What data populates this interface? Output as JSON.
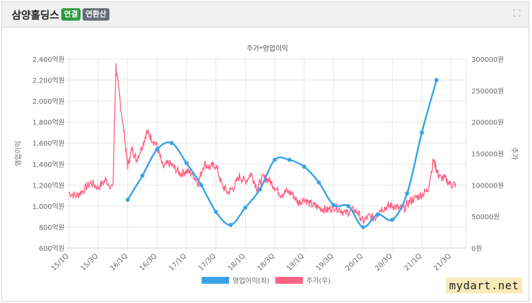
{
  "header": {
    "company_name": "삼양홀딩스",
    "badge_consolidated": "연결",
    "badge_annualized": "연환산"
  },
  "watermark": "mydart.net",
  "colors": {
    "operating_profit": "#3aa3e8",
    "stock_price": "#ff6384",
    "grid": "#e6e6e6",
    "axis_text": "#666666"
  },
  "chart_data": {
    "type": "line",
    "title": "주가*영업이익",
    "ylabel_left": "영업이익",
    "ylabel_right": "주가",
    "legend_position": "bottom",
    "grid": true,
    "x_tick_labels": [
      "15/1Q",
      "15/3Q",
      "16/1Q",
      "16/3Q",
      "17/1Q",
      "17/3Q",
      "18/1Q",
      "18/3Q",
      "19/1Q",
      "19/3Q",
      "20/1Q",
      "20/3Q",
      "21/1Q",
      "21/3Q"
    ],
    "left_axis": {
      "ylim": [
        600,
        2400
      ],
      "ticks": [
        600,
        800,
        1000,
        1200,
        1400,
        1600,
        1800,
        2000,
        2200,
        2400
      ],
      "tick_labels": [
        "600억원",
        "800억원",
        "1,000억원",
        "1,200억원",
        "1,400억원",
        "1,600억원",
        "1,800억원",
        "2,000억원",
        "2,200억원",
        "2,400억원"
      ]
    },
    "right_axis": {
      "ylim": [
        0,
        300000
      ],
      "ticks": [
        0,
        50000,
        100000,
        150000,
        200000,
        250000,
        300000
      ],
      "tick_labels": [
        "0원",
        "50000원",
        "100000원",
        "150000원",
        "200000원",
        "250000원",
        "300000원"
      ]
    },
    "series": [
      {
        "name": "영업이익(좌)",
        "axis": "left",
        "x": [
          4,
          5,
          6,
          7,
          8,
          9,
          10,
          11,
          12,
          13,
          14,
          15,
          16,
          17,
          18,
          19,
          20,
          21,
          22,
          23,
          24,
          25,
          26
        ],
        "values": [
          1060,
          1290,
          1540,
          1600,
          1410,
          1200,
          945,
          820,
          985,
          1160,
          1440,
          1440,
          1375,
          1225,
          1010,
          1000,
          800,
          920,
          870,
          1120,
          1700,
          2200,
          null
        ]
      },
      {
        "name": "주가(우)",
        "axis": "right",
        "x": [
          0,
          0.5,
          1,
          1.5,
          2,
          2.5,
          3,
          3.2,
          3.5,
          3.8,
          4,
          4.3,
          4.6,
          5,
          5.3,
          5.6,
          6,
          6.4,
          6.8,
          7.2,
          7.6,
          8,
          8.4,
          8.8,
          9.2,
          9.6,
          10,
          10.4,
          10.8,
          11.2,
          11.6,
          12,
          12.4,
          12.8,
          13.2,
          13.6,
          14,
          14.4,
          14.8,
          15.2,
          15.6,
          16,
          16.4,
          16.8,
          17.2,
          17.6,
          18,
          18.4,
          18.8,
          19.2,
          19.6,
          20,
          20.4,
          20.8,
          21.2,
          21.6,
          22,
          22.4,
          22.8,
          23.2,
          23.6,
          24,
          24.4,
          24.8,
          25,
          25.2,
          25.6,
          26,
          26.3
        ],
        "values": [
          88000,
          83000,
          92000,
          104000,
          96000,
          108000,
          95000,
          290000,
          230000,
          175000,
          130000,
          158000,
          140000,
          162000,
          185000,
          175000,
          162000,
          128000,
          135000,
          127000,
          118000,
          122000,
          118000,
          104000,
          134000,
          128000,
          132000,
          100000,
          88000,
          96000,
          114000,
          106000,
          118000,
          95000,
          112000,
          108000,
          97000,
          85000,
          90000,
          86000,
          72000,
          78000,
          70000,
          66000,
          63000,
          60000,
          66000,
          62000,
          55000,
          60000,
          58000,
          42000,
          50000,
          47000,
          62000,
          65000,
          68000,
          63000,
          62000,
          75000,
          80000,
          85000,
          92000,
          140000,
          125000,
          112000,
          110000,
          100000,
          102000
        ]
      }
    ]
  }
}
